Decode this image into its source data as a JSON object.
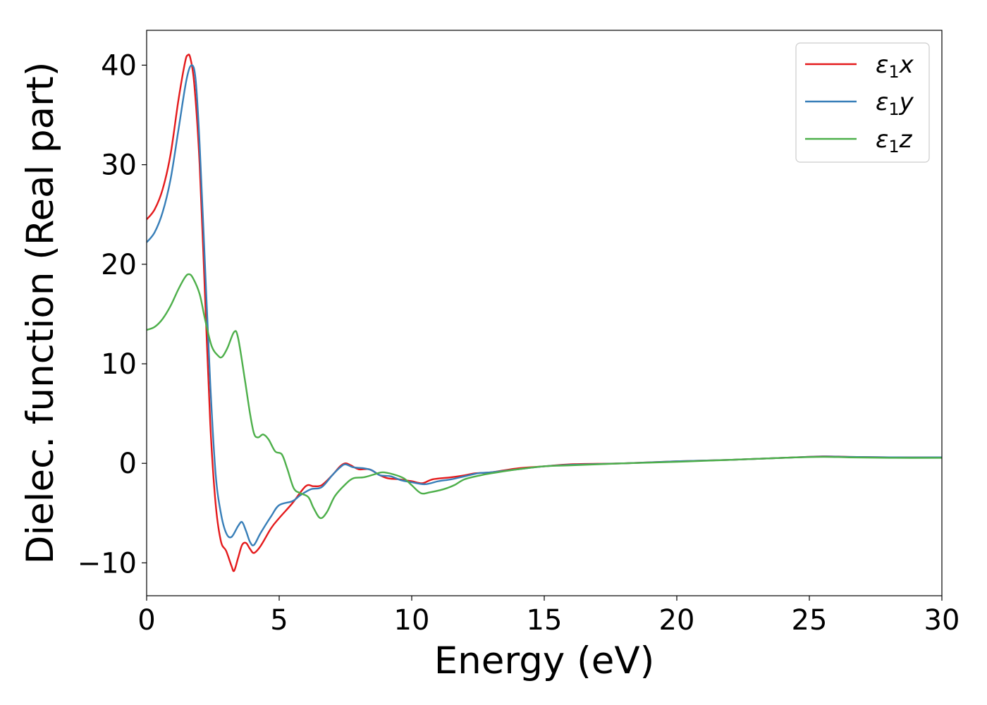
{
  "chart_data": {
    "type": "line",
    "xlabel": "Energy (eV)",
    "ylabel": "Dielec. function (Real part)",
    "xlim": [
      0,
      30
    ],
    "ylim": [
      -13.3,
      43.5
    ],
    "xticks": [
      0,
      5,
      10,
      15,
      20,
      25,
      30
    ],
    "xtick_labels": [
      "0",
      "5",
      "10",
      "15",
      "20",
      "25",
      "30"
    ],
    "yticks": [
      -10,
      0,
      10,
      20,
      30,
      40
    ],
    "ytick_labels": [
      "−10",
      "0",
      "10",
      "20",
      "30",
      "40"
    ],
    "grid": false,
    "legend_position": "top-right",
    "series": [
      {
        "name": "ε1x",
        "label_symbol": "ε",
        "label_sub": "1",
        "label_var": "x",
        "color": "#e41a1c",
        "points": [
          [
            0,
            24.5
          ],
          [
            0.3,
            25.5
          ],
          [
            0.6,
            27.5
          ],
          [
            0.9,
            31
          ],
          [
            1.2,
            36.5
          ],
          [
            1.45,
            40.3
          ],
          [
            1.55,
            41
          ],
          [
            1.65,
            40.7
          ],
          [
            1.8,
            38
          ],
          [
            2.0,
            30
          ],
          [
            2.2,
            17
          ],
          [
            2.4,
            4
          ],
          [
            2.6,
            -4
          ],
          [
            2.8,
            -7.8
          ],
          [
            3.0,
            -8.8
          ],
          [
            3.2,
            -10.3
          ],
          [
            3.3,
            -10.8
          ],
          [
            3.45,
            -9.5
          ],
          [
            3.6,
            -8.2
          ],
          [
            3.75,
            -8
          ],
          [
            3.9,
            -8.6
          ],
          [
            4.05,
            -9
          ],
          [
            4.3,
            -8.3
          ],
          [
            4.7,
            -6.5
          ],
          [
            5.0,
            -5.5
          ],
          [
            5.5,
            -4
          ],
          [
            6.0,
            -2.3
          ],
          [
            6.3,
            -2.3
          ],
          [
            6.6,
            -2.2
          ],
          [
            7.0,
            -1.2
          ],
          [
            7.3,
            -0.3
          ],
          [
            7.5,
            0.0
          ],
          [
            7.7,
            -0.2
          ],
          [
            8.0,
            -0.6
          ],
          [
            8.4,
            -0.6
          ],
          [
            8.8,
            -1.2
          ],
          [
            9.1,
            -1.5
          ],
          [
            9.5,
            -1.6
          ],
          [
            10.0,
            -1.8
          ],
          [
            10.4,
            -2.0
          ],
          [
            10.8,
            -1.6
          ],
          [
            11.5,
            -1.4
          ],
          [
            12.0,
            -1.2
          ],
          [
            12.4,
            -1.0
          ],
          [
            13.0,
            -0.9
          ],
          [
            14.0,
            -0.5
          ],
          [
            15.0,
            -0.3
          ],
          [
            16.0,
            -0.1
          ],
          [
            18.0,
            0.0
          ],
          [
            20.0,
            0.2
          ],
          [
            22.0,
            0.35
          ],
          [
            24.0,
            0.55
          ],
          [
            25.5,
            0.7
          ],
          [
            26.5,
            0.65
          ],
          [
            28.0,
            0.6
          ],
          [
            30.0,
            0.6
          ]
        ]
      },
      {
        "name": "ε1y",
        "label_symbol": "ε",
        "label_sub": "1",
        "label_var": "y",
        "color": "#377eb8",
        "points": [
          [
            0,
            22.2
          ],
          [
            0.3,
            23.2
          ],
          [
            0.6,
            25.2
          ],
          [
            0.9,
            28.5
          ],
          [
            1.2,
            33.5
          ],
          [
            1.5,
            38.5
          ],
          [
            1.7,
            40
          ],
          [
            1.85,
            38.5
          ],
          [
            2.0,
            32
          ],
          [
            2.2,
            20
          ],
          [
            2.4,
            8
          ],
          [
            2.6,
            -1
          ],
          [
            2.8,
            -5
          ],
          [
            3.0,
            -7
          ],
          [
            3.2,
            -7.4
          ],
          [
            3.45,
            -6.3
          ],
          [
            3.6,
            -5.9
          ],
          [
            3.75,
            -6.8
          ],
          [
            3.9,
            -7.9
          ],
          [
            4.05,
            -8.2
          ],
          [
            4.3,
            -7
          ],
          [
            4.7,
            -5.3
          ],
          [
            5.0,
            -4.2
          ],
          [
            5.5,
            -3.8
          ],
          [
            5.8,
            -3.2
          ],
          [
            6.2,
            -2.6
          ],
          [
            6.6,
            -2.4
          ],
          [
            7.0,
            -1.2
          ],
          [
            7.3,
            -0.4
          ],
          [
            7.5,
            -0.1
          ],
          [
            7.8,
            -0.4
          ],
          [
            8.2,
            -0.5
          ],
          [
            8.5,
            -0.7
          ],
          [
            8.8,
            -1.2
          ],
          [
            9.2,
            -1.3
          ],
          [
            9.6,
            -1.7
          ],
          [
            10.0,
            -1.9
          ],
          [
            10.5,
            -2.1
          ],
          [
            11.0,
            -1.8
          ],
          [
            11.5,
            -1.6
          ],
          [
            12.0,
            -1.3
          ],
          [
            12.5,
            -1.0
          ],
          [
            13.0,
            -0.9
          ],
          [
            14.0,
            -0.6
          ],
          [
            15.0,
            -0.3
          ],
          [
            16.0,
            -0.15
          ],
          [
            18.0,
            0.0
          ],
          [
            20.0,
            0.2
          ],
          [
            22.0,
            0.35
          ],
          [
            24.0,
            0.55
          ],
          [
            25.5,
            0.68
          ],
          [
            26.5,
            0.65
          ],
          [
            28.0,
            0.6
          ],
          [
            30.0,
            0.6
          ]
        ]
      },
      {
        "name": "ε1z",
        "label_symbol": "ε",
        "label_sub": "1",
        "label_var": "z",
        "color": "#4daf4a",
        "points": [
          [
            0,
            13.4
          ],
          [
            0.3,
            13.7
          ],
          [
            0.6,
            14.5
          ],
          [
            0.9,
            15.8
          ],
          [
            1.2,
            17.5
          ],
          [
            1.45,
            18.7
          ],
          [
            1.6,
            19
          ],
          [
            1.75,
            18.6
          ],
          [
            2.0,
            17
          ],
          [
            2.2,
            14.5
          ],
          [
            2.45,
            11.8
          ],
          [
            2.7,
            10.8
          ],
          [
            2.85,
            10.7
          ],
          [
            3.05,
            11.6
          ],
          [
            3.3,
            13.2
          ],
          [
            3.45,
            12.6
          ],
          [
            3.7,
            8.5
          ],
          [
            3.9,
            5
          ],
          [
            4.05,
            3
          ],
          [
            4.2,
            2.6
          ],
          [
            4.4,
            2.9
          ],
          [
            4.6,
            2.4
          ],
          [
            4.85,
            1.2
          ],
          [
            5.1,
            0.9
          ],
          [
            5.3,
            -0.5
          ],
          [
            5.55,
            -2.5
          ],
          [
            5.8,
            -3
          ],
          [
            6.1,
            -3.4
          ],
          [
            6.3,
            -4.5
          ],
          [
            6.55,
            -5.5
          ],
          [
            6.8,
            -4.9
          ],
          [
            7.1,
            -3.3
          ],
          [
            7.5,
            -2.1
          ],
          [
            7.8,
            -1.5
          ],
          [
            8.2,
            -1.4
          ],
          [
            8.6,
            -1.1
          ],
          [
            8.9,
            -0.9
          ],
          [
            9.3,
            -1.1
          ],
          [
            9.7,
            -1.5
          ],
          [
            10.0,
            -2.2
          ],
          [
            10.35,
            -3.0
          ],
          [
            10.7,
            -2.9
          ],
          [
            11.2,
            -2.6
          ],
          [
            11.6,
            -2.2
          ],
          [
            12.0,
            -1.6
          ],
          [
            12.6,
            -1.2
          ],
          [
            13.0,
            -1.0
          ],
          [
            14.0,
            -0.6
          ],
          [
            15.0,
            -0.3
          ],
          [
            16.0,
            -0.2
          ],
          [
            18.0,
            0.0
          ],
          [
            20.0,
            0.15
          ],
          [
            22.0,
            0.35
          ],
          [
            24.0,
            0.55
          ],
          [
            25.5,
            0.65
          ],
          [
            26.5,
            0.6
          ],
          [
            28.0,
            0.55
          ],
          [
            30.0,
            0.55
          ]
        ]
      }
    ]
  }
}
